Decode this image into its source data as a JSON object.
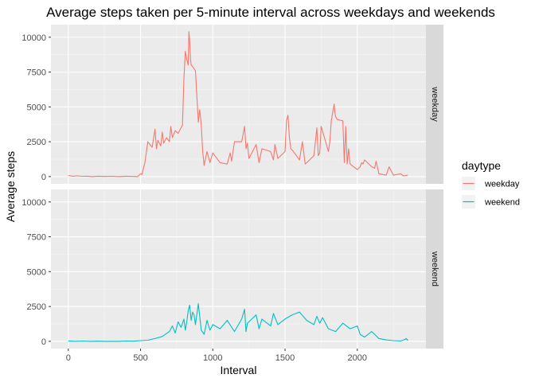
{
  "chart_data": {
    "type": "line",
    "title": "Average steps taken per 5-minute interval across weekdays and weekends",
    "xlabel": "Interval",
    "ylabel": "Average steps",
    "xlim": [
      -120,
      2475
    ],
    "ylim": [
      -520,
      10900
    ],
    "x_ticks": [
      0,
      500,
      1000,
      1500,
      2000
    ],
    "x_tick_labels": [
      "0",
      "500",
      "1000",
      "1500",
      "2000"
    ],
    "y_ticks": [
      0,
      2500,
      5000,
      7500,
      10000
    ],
    "y_tick_labels": [
      "0",
      "2500",
      "5000",
      "7500",
      "10000"
    ],
    "grid": true,
    "legend_title": "daytype",
    "legend_position": "right",
    "panels": [
      "weekday",
      "weekend"
    ],
    "series": [
      {
        "name": "weekday",
        "color": "#F8766D",
        "x": [
          0,
          30,
          60,
          100,
          130,
          170,
          200,
          250,
          300,
          350,
          400,
          450,
          480,
          500,
          510,
          520,
          530,
          550,
          580,
          600,
          610,
          620,
          640,
          650,
          660,
          680,
          700,
          710,
          720,
          740,
          760,
          780,
          790,
          800,
          810,
          820,
          830,
          835,
          840,
          845,
          850,
          860,
          880,
          900,
          910,
          920,
          930,
          940,
          960,
          980,
          1000,
          1050,
          1100,
          1120,
          1130,
          1150,
          1200,
          1220,
          1230,
          1240,
          1250,
          1300,
          1320,
          1340,
          1400,
          1420,
          1430,
          1450,
          1500,
          1510,
          1520,
          1530,
          1540,
          1550,
          1600,
          1620,
          1640,
          1650,
          1700,
          1720,
          1730,
          1740,
          1750,
          1800,
          1810,
          1820,
          1840,
          1845,
          1850,
          1860,
          1900,
          1910,
          1920,
          1930,
          1940,
          1950,
          2000,
          2020,
          2030,
          2040,
          2050,
          2100,
          2120,
          2130,
          2150,
          2200,
          2220,
          2250,
          2300,
          2320,
          2350
        ],
        "values": [
          80,
          30,
          50,
          20,
          30,
          0,
          30,
          10,
          20,
          0,
          30,
          10,
          0,
          200,
          150,
          600,
          1000,
          2500,
          2100,
          3400,
          2000,
          2600,
          2200,
          3200,
          2400,
          2800,
          2500,
          3600,
          2800,
          3300,
          3100,
          3500,
          3700,
          7000,
          9000,
          8400,
          8000,
          10400,
          9800,
          8500,
          8000,
          7900,
          7600,
          3900,
          4800,
          3700,
          1800,
          800,
          1800,
          1000,
          1700,
          1000,
          900,
          1700,
          1100,
          2500,
          2500,
          3600,
          2000,
          2400,
          1300,
          2300,
          1000,
          2000,
          1800,
          1200,
          2300,
          1300,
          1800,
          4000,
          4400,
          2800,
          2000,
          1900,
          1200,
          2500,
          900,
          1000,
          1500,
          3500,
          1500,
          1700,
          3600,
          1800,
          2500,
          4000,
          5200,
          4600,
          4300,
          4100,
          4000,
          1000,
          3600,
          900,
          2000,
          900,
          500,
          700,
          1000,
          900,
          1200,
          700,
          600,
          1100,
          200,
          100,
          700,
          100,
          200,
          50,
          100
        ],
        "panel": "weekday"
      },
      {
        "name": "weekend",
        "color": "#00BFC4",
        "x": [
          0,
          50,
          100,
          150,
          200,
          250,
          300,
          350,
          400,
          450,
          500,
          550,
          600,
          650,
          700,
          720,
          740,
          760,
          780,
          800,
          810,
          820,
          830,
          840,
          850,
          860,
          870,
          880,
          900,
          920,
          940,
          960,
          980,
          1000,
          1050,
          1100,
          1150,
          1200,
          1220,
          1230,
          1240,
          1300,
          1320,
          1340,
          1400,
          1420,
          1450,
          1500,
          1550,
          1600,
          1650,
          1700,
          1720,
          1740,
          1760,
          1800,
          1850,
          1900,
          1950,
          2000,
          2020,
          2050,
          2100,
          2150,
          2200,
          2250,
          2300,
          2320,
          2340,
          2350
        ],
        "values": [
          30,
          0,
          20,
          0,
          10,
          0,
          0,
          0,
          20,
          10,
          50,
          80,
          200,
          350,
          700,
          1100,
          600,
          1400,
          1000,
          1600,
          800,
          1400,
          2200,
          2600,
          1500,
          2100,
          1900,
          1200,
          2700,
          800,
          500,
          1500,
          800,
          1200,
          900,
          1500,
          700,
          1600,
          2300,
          700,
          1300,
          1900,
          900,
          1600,
          1100,
          2000,
          1200,
          1600,
          1900,
          2100,
          1500,
          1200,
          1800,
          1300,
          1700,
          900,
          700,
          1300,
          900,
          1100,
          500,
          300,
          700,
          200,
          100,
          50,
          20,
          100,
          200,
          50
        ],
        "panel": "weekend"
      }
    ]
  }
}
